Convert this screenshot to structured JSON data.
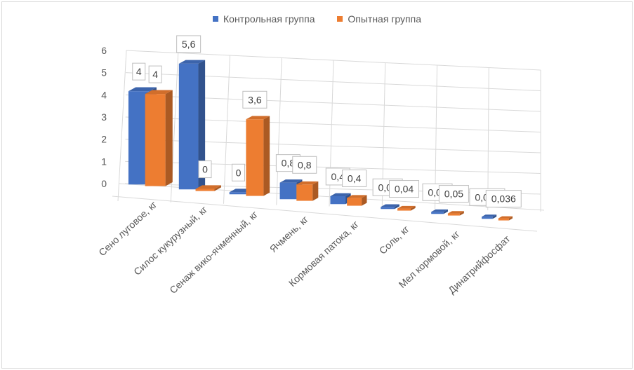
{
  "chart_data": {
    "type": "bar",
    "title": "",
    "xlabel": "",
    "ylabel": "",
    "ylim": [
      0,
      6
    ],
    "yticks": [
      "0",
      "1",
      "2",
      "3",
      "4",
      "5",
      "6"
    ],
    "grid": true,
    "legend_position": "top-center",
    "categories": [
      "Сено луговое, кг",
      "Силос кукурузный, кг",
      "Сенаж вико-ячменный, кг",
      "Ячмень, кг",
      "Кормовая патока, кг",
      "Соль, кг",
      "Мел кормовой, кг",
      "Динатрийфосфат"
    ],
    "series": [
      {
        "name": "Контрольная группа",
        "color": "#4472C4",
        "values": [
          4,
          5.6,
          0,
          0.8,
          0.4,
          0.04,
          0.05,
          0.036
        ],
        "labels": [
          "4",
          "5,6",
          "0",
          "0,8",
          "0,4",
          "0,04",
          "0,05",
          "0,036"
        ]
      },
      {
        "name": "Опытная группа",
        "color": "#ED7D31",
        "values": [
          4,
          0,
          3.6,
          0.8,
          0.4,
          0.04,
          0.05,
          0.036
        ],
        "labels": [
          "4",
          "0",
          "3,6",
          "0,8",
          "0,4",
          "0,04",
          "0,05",
          "0,036"
        ]
      }
    ]
  }
}
